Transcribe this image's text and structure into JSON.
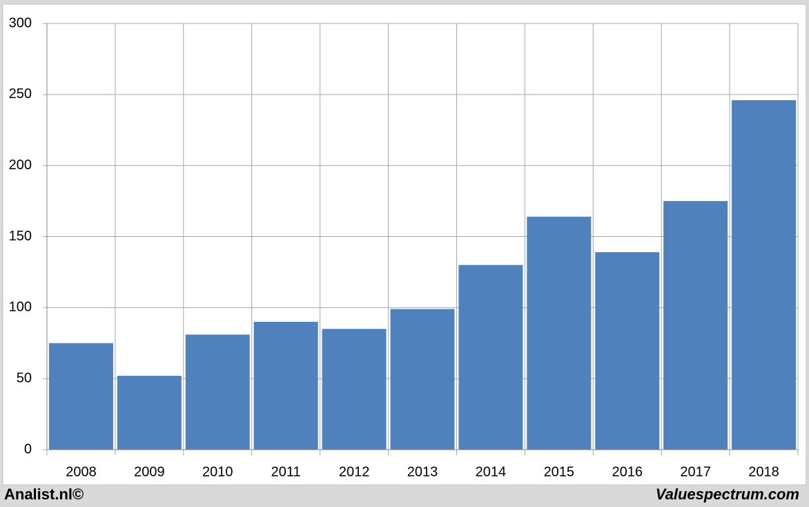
{
  "chart_data": {
    "type": "bar",
    "categories": [
      "2008",
      "2009",
      "2010",
      "2011",
      "2012",
      "2013",
      "2014",
      "2015",
      "2016",
      "2017",
      "2018"
    ],
    "values": [
      75,
      52,
      81,
      90,
      85,
      99,
      130,
      164,
      139,
      175,
      246
    ],
    "color": "#4f81bd",
    "ylim": [
      0,
      300
    ],
    "yticks": [
      0,
      50,
      100,
      150,
      200,
      250,
      300
    ],
    "grid": true,
    "source": "Analist.nl©",
    "credit": "Valuespectrum.com"
  }
}
